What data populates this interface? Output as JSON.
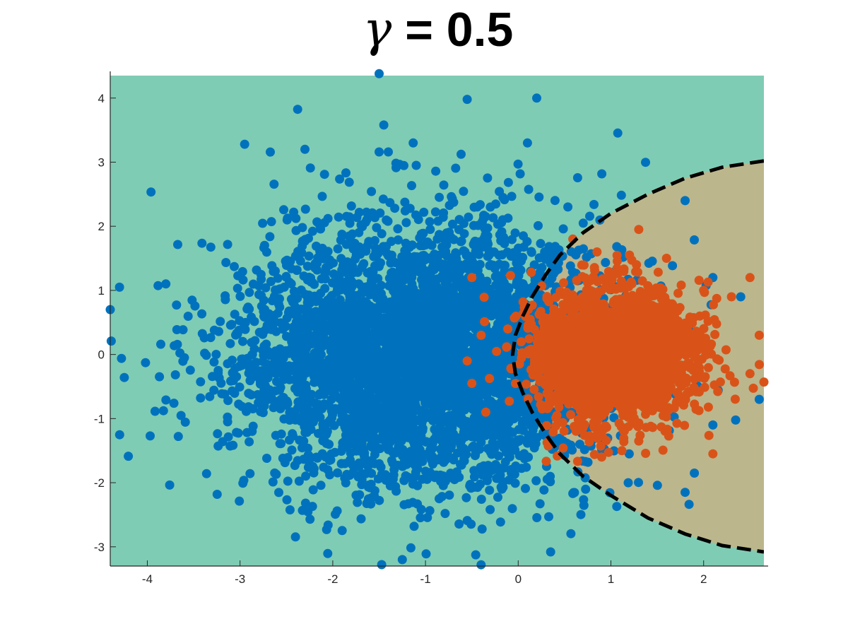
{
  "chart_data": {
    "type": "scatter",
    "title_symbol": "γ",
    "title_value": " = 0.5",
    "xlabel": "",
    "ylabel": "",
    "xlim": [
      -4.4,
      2.65
    ],
    "ylim": [
      -3.3,
      4.35
    ],
    "x_ticks": [
      -4,
      -3,
      -2,
      -1,
      0,
      1,
      2
    ],
    "y_ticks": [
      -3,
      -2,
      -1,
      0,
      1,
      2,
      3,
      4
    ],
    "x_tick_labels": [
      "-4",
      "-3",
      "-2",
      "-1",
      "0",
      "1",
      "2"
    ],
    "y_tick_labels": [
      "-3",
      "-2",
      "-1",
      "0",
      "1",
      "2",
      "3",
      "4"
    ],
    "grid": false,
    "legend": "none",
    "colors": {
      "class_a": "#0072BD",
      "class_b": "#D95319",
      "region_a": "#7FCCB4",
      "region_b": "#BCB68C",
      "boundary": "#000000"
    },
    "decision_boundary": {
      "style": "dashed",
      "x": [
        2.65,
        2.2,
        1.8,
        1.4,
        1.0,
        0.7,
        0.45,
        0.3,
        0.15,
        0.05,
        -0.03,
        -0.06,
        -0.03,
        0.05,
        0.15,
        0.3,
        0.45,
        0.7,
        1.0,
        1.4,
        1.8,
        2.2,
        2.65
      ],
      "y": [
        3.02,
        2.92,
        2.75,
        2.5,
        2.2,
        1.9,
        1.55,
        1.25,
        0.9,
        0.6,
        0.3,
        0.0,
        -0.3,
        -0.6,
        -0.9,
        -1.25,
        -1.55,
        -1.9,
        -2.2,
        -2.55,
        -2.8,
        -2.98,
        -3.08
      ]
    },
    "series": [
      {
        "class": "a",
        "distribution": {
          "type": "gaussian",
          "mean": [
            -1.0,
            0.0
          ],
          "std": [
            1.0,
            1.0
          ],
          "count": 4500,
          "seed": 11
        },
        "outliers": [
          [
            -4.4,
            0.7
          ],
          [
            -4.3,
            1.05
          ],
          [
            -1.5,
            4.38
          ],
          [
            -0.55,
            3.98
          ],
          [
            0.2,
            4.0
          ],
          [
            -1.45,
            3.58
          ],
          [
            -2.95,
            3.28
          ],
          [
            -2.3,
            3.2
          ],
          [
            -1.5,
            3.16
          ],
          [
            -1.1,
            2.95
          ],
          [
            2.1,
            -1.1
          ],
          [
            1.9,
            -1.85
          ],
          [
            2.6,
            -0.7
          ],
          [
            -1.25,
            -3.2
          ],
          [
            -0.4,
            -3.28
          ],
          [
            0.35,
            -3.08
          ],
          [
            -3.6,
            -0.05
          ],
          [
            1.8,
            -2.15
          ],
          [
            2.1,
            1.2
          ],
          [
            1.8,
            2.4
          ],
          [
            2.4,
            0.9
          ],
          [
            -3.8,
            1.1
          ],
          [
            0.1,
            3.3
          ],
          [
            -0.3,
            2.3
          ]
        ]
      },
      {
        "class": "b",
        "distribution": {
          "type": "gaussian",
          "mean": [
            1.05,
            0.0
          ],
          "std": [
            0.42,
            0.5
          ],
          "count": 2600,
          "seed": 29
        },
        "outliers": [
          [
            1.3,
            1.95
          ],
          [
            1.2,
            1.55
          ],
          [
            0.85,
            1.6
          ],
          [
            1.6,
            1.5
          ],
          [
            2.0,
            1.0
          ],
          [
            2.3,
            0.9
          ],
          [
            2.5,
            1.2
          ],
          [
            2.6,
            0.3
          ],
          [
            2.65,
            -0.43
          ],
          [
            2.1,
            -1.55
          ],
          [
            -0.5,
            1.2
          ],
          [
            -0.4,
            0.3
          ],
          [
            -0.55,
            -0.1
          ],
          [
            -0.5,
            -0.45
          ],
          [
            -0.35,
            -0.9
          ],
          [
            0.9,
            -1.6
          ],
          [
            1.3,
            -1.35
          ],
          [
            2.5,
            -0.3
          ]
        ]
      }
    ]
  }
}
